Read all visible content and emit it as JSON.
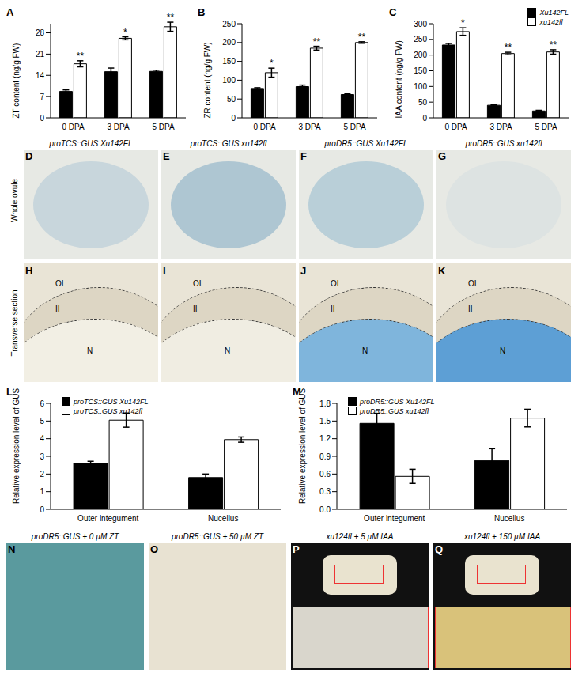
{
  "chart_data": [
    {
      "panel": "A",
      "type": "bar",
      "y_label": "ZT content (ng/g FW)",
      "categories": [
        "0 DPA",
        "3 DPA",
        "5 DPA"
      ],
      "ylim": [
        0,
        31
      ],
      "yticks": [
        0,
        7,
        14,
        21,
        28
      ],
      "series": [
        {
          "color": "#000000",
          "values": [
            8.7,
            15.2,
            15.3
          ],
          "errors": [
            0.5,
            1.2,
            0.4
          ]
        },
        {
          "color": "#ffffff",
          "values": [
            17.8,
            26.2,
            30.0
          ],
          "errors": [
            1.0,
            0.5,
            1.5
          ],
          "significance": [
            "**",
            "*",
            "**"
          ]
        }
      ]
    },
    {
      "panel": "B",
      "type": "bar",
      "y_label": "ZR content (ng/g FW)",
      "categories": [
        "0 DPA",
        "3 DPA",
        "5 DPA"
      ],
      "ylim": [
        0,
        250
      ],
      "yticks": [
        0,
        50,
        100,
        150,
        200,
        250
      ],
      "series": [
        {
          "color": "#000000",
          "values": [
            78,
            83,
            62
          ],
          "errors": [
            2,
            4,
            2
          ]
        },
        {
          "color": "#ffffff",
          "values": [
            120,
            185,
            200
          ],
          "errors": [
            12,
            5,
            2
          ],
          "significance": [
            "*",
            "**",
            "**"
          ]
        }
      ]
    },
    {
      "panel": "C",
      "type": "bar",
      "y_label": "IAA content (ng/g FW)",
      "categories": [
        "0 DPA",
        "3 DPA",
        "5 DPA"
      ],
      "ylim": [
        0,
        300
      ],
      "yticks": [
        0,
        50,
        100,
        150,
        200,
        250,
        300
      ],
      "legend": "top-right",
      "series": [
        {
          "name": "Xu142FL",
          "color": "#000000",
          "values": [
            232,
            40,
            22
          ],
          "errors": [
            5,
            2,
            2
          ]
        },
        {
          "name": "xu142fl",
          "color": "#ffffff",
          "values": [
            275,
            205,
            210
          ],
          "errors": [
            12,
            4,
            7
          ],
          "significance": [
            "*",
            "**",
            "**"
          ]
        }
      ]
    },
    {
      "panel": "L",
      "type": "bar",
      "y_label": "Relative expression level of GUS",
      "categories": [
        "Outer integument",
        "Nucellus"
      ],
      "ylim": [
        0,
        6
      ],
      "yticks": [
        0,
        1,
        2,
        3,
        4,
        5,
        6
      ],
      "legend": "top-left",
      "series": [
        {
          "name": "proTCS::GUS Xu142FL",
          "color": "#000000",
          "values": [
            2.6,
            1.8
          ],
          "errors": [
            0.12,
            0.2
          ]
        },
        {
          "name": "proTCS::GUS xu142fl",
          "color": "#ffffff",
          "values": [
            5.05,
            3.95
          ],
          "errors": [
            0.4,
            0.15
          ]
        }
      ]
    },
    {
      "panel": "M",
      "type": "bar",
      "y_label": "Relative expression level of GUS",
      "categories": [
        "Outer integument",
        "Nucellus"
      ],
      "ylim": [
        0,
        1.8
      ],
      "yticks": [
        {
          "value": 0,
          "label": "0.0"
        },
        {
          "value": 0.3,
          "label": "0.3"
        },
        {
          "value": 0.6,
          "label": "0.6"
        },
        {
          "value": 0.9,
          "label": "0.9"
        },
        {
          "value": 1.2,
          "label": "1.2"
        },
        {
          "value": 1.5,
          "label": "1.5"
        },
        {
          "value": 1.8,
          "label": "1.8"
        }
      ],
      "legend": "top-left",
      "series": [
        {
          "name": "proDR5::GUS Xu142FL",
          "color": "#000000",
          "values": [
            1.46,
            0.83
          ],
          "errors": [
            0.17,
            0.2
          ]
        },
        {
          "name": "proDR5::GUS xu142fl",
          "color": "#ffffff",
          "values": [
            0.56,
            1.55
          ],
          "errors": [
            0.12,
            0.15
          ]
        }
      ]
    }
  ],
  "image_panels": {
    "row_labels": [
      "Whole ovule",
      "Transverse section"
    ],
    "top_row": [
      {
        "panel": "D",
        "caption": "proTCS::GUS Xu142FL"
      },
      {
        "panel": "E",
        "caption": "proTCS::GUS xu142fl"
      },
      {
        "panel": "F",
        "caption": "proDR5::GUS Xu142FL"
      },
      {
        "panel": "G",
        "caption": "proDR5::GUS xu142fl"
      }
    ],
    "section_row": [
      "H",
      "I",
      "J",
      "K"
    ],
    "region_labels": [
      "OI",
      "II",
      "N"
    ],
    "bottom_row": [
      {
        "panel": "N",
        "caption": "proDR5::GUS + 0 µM ZT"
      },
      {
        "panel": "O",
        "caption": "proDR5::GUS + 50 µM ZT"
      },
      {
        "panel": "P",
        "caption": "xu124fl + 5 µM IAA"
      },
      {
        "panel": "Q",
        "caption": "xu124fl + 150 µM IAA"
      }
    ]
  }
}
